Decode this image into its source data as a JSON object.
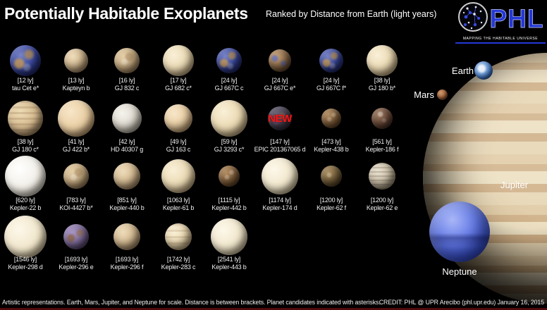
{
  "header": {
    "title": "Potentially Habitable Exoplanets",
    "subtitle": "Ranked by Distance from Earth (light years)",
    "logo": {
      "text": "PHL",
      "tagline": "MAPPING THE HABITABLE UNIVERSE"
    }
  },
  "new_label": "NEW",
  "planets": [
    {
      "distance": "[12 ly]",
      "name": "tau Cet e*",
      "style": "earth",
      "size": 44,
      "row": 0,
      "col": 0
    },
    {
      "distance": "[13 ly]",
      "name": "Kapteyn b",
      "style": "tan",
      "size": 34,
      "row": 0,
      "col": 1
    },
    {
      "distance": "[16 ly]",
      "name": "GJ 832 c",
      "style": "tanmottle",
      "size": 36,
      "row": 0,
      "col": 2
    },
    {
      "distance": "[17 ly]",
      "name": "GJ 682 c*",
      "style": "cream",
      "size": 44,
      "row": 0,
      "col": 3
    },
    {
      "distance": "[24 ly]",
      "name": "GJ 667C c",
      "style": "earth",
      "size": 36,
      "row": 0,
      "col": 4
    },
    {
      "distance": "[24 ly]",
      "name": "GJ 667C e*",
      "style": "brownearth",
      "size": 32,
      "row": 0,
      "col": 5
    },
    {
      "distance": "[24 ly]",
      "name": "GJ 667C f*",
      "style": "earth",
      "size": 34,
      "row": 0,
      "col": 6
    },
    {
      "distance": "[38 ly]",
      "name": "GJ 180 b*",
      "style": "cream",
      "size": 44,
      "row": 0,
      "col": 7
    },
    {
      "distance": "[38 ly]",
      "name": "GJ 180 c*",
      "style": "tanstripe",
      "size": 50,
      "row": 1,
      "col": 0
    },
    {
      "distance": "[41 ly]",
      "name": "GJ 422 b*",
      "style": "peach",
      "size": 52,
      "row": 1,
      "col": 1
    },
    {
      "distance": "[42 ly]",
      "name": "HD 40307 g",
      "style": "gray",
      "size": 42,
      "row": 1,
      "col": 2
    },
    {
      "distance": "[49 ly]",
      "name": "GJ 163 c",
      "style": "peach",
      "size": 40,
      "row": 1,
      "col": 3
    },
    {
      "distance": "[59 ly]",
      "name": "GJ 3293 c*",
      "style": "cream",
      "size": 52,
      "row": 1,
      "col": 4
    },
    {
      "distance": "[147 ly]",
      "name": "EPIC 201367065 d",
      "style": "darknew",
      "size": 34,
      "row": 1,
      "col": 5,
      "badge": true
    },
    {
      "distance": "[473 ly]",
      "name": "Kepler-438 b",
      "style": "brown",
      "size": 28,
      "row": 1,
      "col": 6
    },
    {
      "distance": "[561 ly]",
      "name": "Kepler-186 f",
      "style": "darkbrown",
      "size": 30,
      "row": 1,
      "col": 7
    },
    {
      "distance": "[620 ly]",
      "name": "Kepler-22 b",
      "style": "white",
      "size": 58,
      "row": 2,
      "col": 0
    },
    {
      "distance": "[783 ly]",
      "name": "KOI-4427 b*",
      "style": "tanmottle",
      "size": 36,
      "row": 2,
      "col": 1
    },
    {
      "distance": "[851 ly]",
      "name": "Kepler-440 b",
      "style": "tan",
      "size": 38,
      "row": 2,
      "col": 2
    },
    {
      "distance": "[1063 ly]",
      "name": "Kepler-61 b",
      "style": "cream",
      "size": 48,
      "row": 2,
      "col": 3
    },
    {
      "distance": "[1115 ly]",
      "name": "Kepler-442 b",
      "style": "brown",
      "size": 30,
      "row": 2,
      "col": 4
    },
    {
      "distance": "[1174 ly]",
      "name": "Kepler-174 d",
      "style": "creamwhite",
      "size": 52,
      "row": 2,
      "col": 5
    },
    {
      "distance": "[1200 ly]",
      "name": "Kepler-62 f",
      "style": "olive",
      "size": 30,
      "row": 2,
      "col": 6
    },
    {
      "distance": "[1200 ly]",
      "name": "Kepler-62 e",
      "style": "graystripe",
      "size": 38,
      "row": 2,
      "col": 7
    },
    {
      "distance": "[1546 ly]",
      "name": "Kepler-298 d",
      "style": "creamwhite",
      "size": 60,
      "row": 3,
      "col": 0
    },
    {
      "distance": "[1693 ly]",
      "name": "Kepler-296 e",
      "style": "purple",
      "size": 36,
      "row": 3,
      "col": 1
    },
    {
      "distance": "[1693 ly]",
      "name": "Kepler-296 f",
      "style": "tan",
      "size": 38,
      "row": 3,
      "col": 2
    },
    {
      "distance": "[1742 ly]",
      "name": "Kepler-283 c",
      "style": "creamstripe",
      "size": 38,
      "row": 3,
      "col": 3
    },
    {
      "distance": "[2541 ly]",
      "name": "Kepler-443 b",
      "style": "creamwhite",
      "size": 52,
      "row": 3,
      "col": 4
    }
  ],
  "scale_objects": [
    {
      "id": "earth",
      "label": "Earth"
    },
    {
      "id": "mars",
      "label": "Mars"
    },
    {
      "id": "jupiter",
      "label": "Jupiter"
    },
    {
      "id": "neptune",
      "label": "Neptune"
    }
  ],
  "footer": {
    "note": "Artistic representations. Earth, Mars, Jupiter, and Neptune for scale. Distance is between brackets. Planet candidates indicated with asterisks.",
    "credit": "CREDIT:  PHL @ UPR Arecibo (phl.upr.edu)  January 16, 2015"
  },
  "colors": {
    "background": "#000000",
    "logo_accent": "#2438d6",
    "new_badge": "#f01818",
    "footer_line": "#4e0b0b"
  }
}
